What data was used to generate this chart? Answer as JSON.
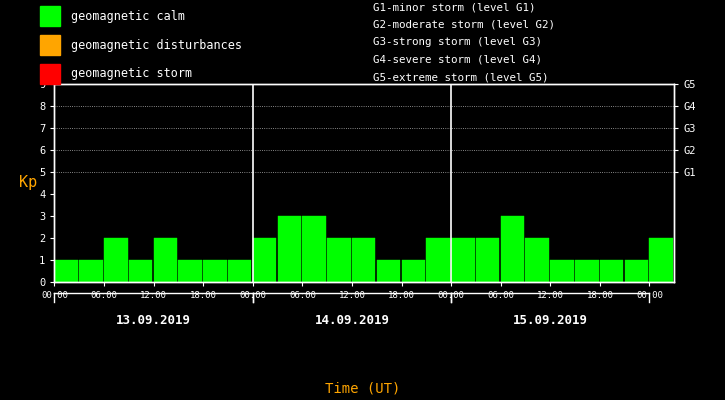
{
  "background_color": "#000000",
  "plot_bg_color": "#000000",
  "bar_color": "#00ff00",
  "text_color": "#ffffff",
  "orange_color": "#ffa500",
  "border_color": "#ffffff",
  "kp_values_day1": [
    1,
    1,
    2,
    1,
    2,
    1,
    1,
    1
  ],
  "kp_values_day2": [
    2,
    3,
    3,
    2,
    2,
    1,
    1,
    2
  ],
  "kp_values_day3": [
    2,
    2,
    3,
    2,
    1,
    1,
    1,
    1
  ],
  "kp_last_bar": 2,
  "legend_items": [
    {
      "color": "#00ff00",
      "label": "geomagnetic calm"
    },
    {
      "color": "#ffa500",
      "label": "geomagnetic disturbances"
    },
    {
      "color": "#ff0000",
      "label": "geomagnetic storm"
    }
  ],
  "storm_legend": [
    "G1-minor storm (level G1)",
    "G2-moderate storm (level G2)",
    "G3-strong storm (level G3)",
    "G4-severe storm (level G4)",
    "G5-extreme storm (level G5)"
  ],
  "right_axis_ticks": [
    5,
    6,
    7,
    8,
    9
  ],
  "right_axis_labels": [
    "G1",
    "G2",
    "G3",
    "G4",
    "G5"
  ],
  "ylabel": "Kp",
  "xlabel": "Time (UT)",
  "ylim": [
    0,
    9
  ],
  "day_labels": [
    "13.09.2019",
    "14.09.2019",
    "15.09.2019"
  ],
  "font_family": "monospace"
}
